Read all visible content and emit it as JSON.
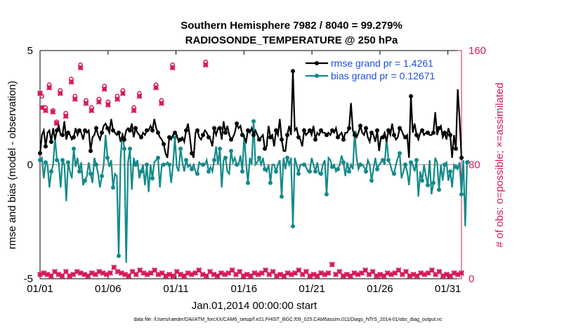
{
  "chart_data": {
    "type": "line",
    "title": "Southern Hemisphere 7982 / 8040 = 99.279%",
    "subtitle": "RADIOSONDE_TEMPERATURE @ 250 hPa",
    "xlabel": "Jan.01,2014 00:00:00 start",
    "ylabel_left": "rmse and bias (model - observation)",
    "ylabel_right": "# of obs: o=possible; ×=assimilated",
    "x_ticks": [
      "01/01",
      "01/06",
      "01/11",
      "01/16",
      "01/21",
      "01/26",
      "01/31"
    ],
    "y_left_ticks": [
      "5",
      "0",
      "-5"
    ],
    "y_right_ticks": [
      "160",
      "80",
      "0"
    ],
    "ylim_left": [
      -5,
      5
    ],
    "ylim_right": [
      0,
      160
    ],
    "legend": [
      "rmse grand pr = 1.4261",
      "bias grand pr = 0.12671"
    ],
    "footnote": "data file: /Users/raeder/DAI/ATM_forcXX/CAM6_setup/f.e21.FHIST_BGC.f09_025.CAM6assim.011/Diags_NTrS_2014-01/obs_diag_output.nc",
    "colors": {
      "rmse": "#000000",
      "bias": "#138a8a",
      "obs": "#d6195a",
      "zero": "#c8a0a0"
    },
    "rmse": [
      0.5,
      1.3,
      1.5,
      0.8,
      1.4,
      1.5,
      1.0,
      1.6,
      1.1,
      1.5,
      1.7,
      1.3,
      1.3,
      1.9,
      1.1,
      1.4,
      1.3,
      1.1,
      1.2,
      1.6,
      1.3,
      1.5,
      1.4,
      1.1,
      1.5,
      1.4,
      1.5,
      0.6,
      1.2,
      1.3,
      1.6,
      1.3,
      1.1,
      1.4,
      1.7,
      1.8,
      1.6,
      1.4,
      2.0,
      1.5,
      1.4,
      1.3,
      1.4,
      1.0,
      1.3,
      1.1,
      1.5,
      1.6,
      1.5,
      1.8,
      1.2,
      1.6,
      1.4,
      1.3,
      1.2,
      1.4,
      1.3,
      1.5,
      1.5,
      1.7,
      1.5,
      2.0,
      1.6,
      1.4,
      1.2,
      1.1,
      0.9,
      0.5,
      0.3,
      1.2,
      1.1,
      1.3,
      1.4,
      1.3,
      1.0,
      1.1,
      1.2,
      1.0,
      1.5,
      1.8,
      1.2,
      0.5,
      0.3,
      1.4,
      1.5,
      1.2,
      1.1,
      1.3,
      1.5,
      1.4,
      1.2,
      1.1,
      0.8,
      1.6,
      1.3,
      1.6,
      1.6,
      1.1,
      1.9,
      1.4,
      1.7,
      1.3,
      1.1,
      1.2,
      1.4,
      1.8,
      1.6,
      1.7,
      1.3,
      1.2,
      1.0,
      1.5,
      1.4,
      1.6,
      1.3,
      1.5,
      1.3,
      1.1,
      1.2,
      1.3,
      0.7,
      0.8,
      1.7,
      1.2,
      1.3,
      0.8,
      1.5,
      1.3,
      2.0,
      1.1,
      0.6,
      0.6,
      1.3,
      1.7,
      1.3,
      4.1,
      1.5,
      1.6,
      1.2,
      1.1,
      0.8,
      1.5,
      1.3,
      1.4,
      1.5,
      1.3,
      1.7,
      1.1,
      1.4,
      1.3,
      1.5,
      1.4,
      1.4,
      1.3,
      1.4,
      1.3,
      1.5,
      1.4,
      1.6,
      1.2,
      1.3,
      1.4,
      1.1,
      1.4,
      1.4,
      1.6,
      2.7,
      1.5,
      1.3,
      1.2,
      1.4,
      1.7,
      1.4,
      1.3,
      1.6,
      1.2,
      1.0,
      1.4,
      1.3,
      1.0,
      1.5,
      0.6,
      1.2,
      1.2,
      1.4,
      1.0,
      1.5,
      1.3,
      1.8,
      1.3,
      1.1,
      1.2,
      1.6,
      1.5,
      1.3,
      1.2,
      1.3,
      0.3,
      3.0,
      1.4,
      1.8,
      1.3,
      1.1,
      1.4,
      1.5,
      1.3,
      1.4,
      1.4,
      1.3,
      1.3,
      1.4,
      2.3,
      1.3,
      1.6,
      1.7,
      1.2,
      1.4,
      1.1,
      1.6,
      1.3,
      0.3,
      1.3,
      0.7,
      3.3,
      2.0,
      0.3
    ],
    "bias": [
      0.2,
      0.3,
      -0.6,
      0.1,
      0.0,
      -1.0,
      -0.3,
      0.0,
      1.2,
      0.2,
      0.1,
      -1.0,
      0.2,
      0.0,
      -1.6,
      0.1,
      -0.3,
      -0.6,
      0.7,
      -0.1,
      0.3,
      -0.3,
      0.1,
      -0.9,
      -0.7,
      -0.5,
      0.1,
      -0.4,
      -0.8,
      0.3,
      0.0,
      -0.4,
      -1.0,
      -0.5,
      0.0,
      1.3,
      0.3,
      -0.1,
      0.2,
      -1.0,
      -0.4,
      -0.5,
      -4.0,
      0.3,
      1.4,
      0.7,
      -4.3,
      0.1,
      0.7,
      -1.1,
      0.3,
      0.0,
      0.2,
      -0.6,
      -0.3,
      0.0,
      -0.9,
      0.0,
      -1.2,
      0.0,
      -0.6,
      0.1,
      0.2,
      0.3,
      -1.0,
      0.0,
      0.0,
      0.0,
      0.1,
      0.0,
      -0.8,
      0.0,
      1.2,
      -0.1,
      -0.3,
      0.7,
      0.1,
      -0.3,
      0.2,
      -0.1,
      0.0,
      -0.2,
      0.0,
      -0.3,
      -0.4,
      0.1,
      0.0,
      0.0,
      0.0,
      0.2,
      -0.3,
      -0.1,
      -0.3,
      0.2,
      0.8,
      0.0,
      0.7,
      -1.0,
      0.2,
      0.3,
      -0.3,
      -0.4,
      0.6,
      0.1,
      0.3,
      0.0,
      0.0,
      0.4,
      -0.3,
      1.3,
      0.1,
      -0.8,
      0.3,
      0.0,
      1.9,
      0.0,
      0.1,
      0.3,
      0.0,
      0.3,
      -0.2,
      -0.3,
      0.0,
      -0.8,
      0.0,
      0.0,
      -0.3,
      0.0,
      0.2,
      -1.4,
      0.3,
      -0.2,
      0.3,
      0.0,
      0.3,
      -2.7,
      0.3,
      0.0,
      -0.4,
      0.0,
      0.0,
      0.0,
      -0.1,
      -0.3,
      -0.3,
      0.3,
      0.0,
      -0.3,
      0.1,
      -0.4,
      -0.4,
      0.0,
      0.2,
      -1.3,
      0.3,
      0.2,
      -0.1,
      0.0,
      -0.3,
      -0.2,
      0.0,
      0.4,
      0.1,
      -0.5,
      0.1,
      -0.3,
      0.0,
      -0.2,
      1.4,
      0.3,
      -0.2,
      0.0,
      0.0,
      -0.1,
      -0.3,
      0.2,
      0.0,
      -0.7,
      -0.2,
      0.3,
      -0.2,
      0.0,
      0.1,
      0.2,
      0.0,
      1.2,
      0.2,
      0.0,
      -0.3,
      -0.4,
      0.0,
      0.3,
      0.5,
      -0.6,
      -0.3,
      0.0,
      -0.3,
      -0.9,
      0.1,
      0.0,
      -0.3,
      0.2,
      -1.4,
      -0.3,
      -0.7,
      0.0,
      -0.5,
      -0.9,
      0.2,
      -1.3,
      -0.8,
      0.3,
      0.1,
      -1.1,
      0.0,
      -0.7,
      0.0,
      0.1,
      -0.7,
      -0.3,
      -1.0,
      0.0,
      -0.1,
      -0.2,
      0.1,
      -1.3,
      0.2,
      -2.7,
      0.1,
      0.2
    ],
    "obs_possible_upper": [
      130,
      128,
      0,
      120,
      0,
      136,
      0,
      118,
      0,
      110,
      0,
      132,
      0,
      0,
      116,
      0,
      0,
      140,
      0,
      128,
      0,
      0,
      150,
      0,
      0,
      125,
      0,
      0,
      120,
      0,
      0,
      0,
      126,
      0,
      0,
      135,
      0,
      124,
      0,
      0,
      0,
      0,
      128,
      0,
      0,
      132,
      0,
      0,
      0,
      0,
      0,
      120,
      0,
      0,
      130,
      0,
      0,
      0,
      0,
      0,
      0,
      0,
      0,
      136,
      0,
      0,
      125,
      0,
      0,
      0,
      0,
      0,
      150,
      0,
      0,
      0,
      0,
      0,
      0,
      0,
      0,
      0,
      0,
      0,
      0,
      0,
      0,
      0,
      0,
      0,
      152,
      0,
      0,
      0,
      0,
      0,
      0,
      0,
      0,
      0,
      0,
      0,
      0,
      0,
      0,
      0,
      0,
      0,
      0,
      0,
      0,
      0,
      0,
      0,
      0,
      0,
      0,
      0,
      0,
      0,
      0,
      0,
      0,
      0,
      0,
      0,
      0,
      0,
      0,
      0,
      0,
      0,
      0,
      0,
      0,
      0,
      0,
      0,
      0,
      0,
      0,
      0,
      0,
      0,
      0,
      0,
      0,
      0,
      0,
      0,
      0,
      0,
      0,
      0,
      0,
      0,
      0,
      0,
      0,
      0,
      0,
      0,
      0,
      0,
      0,
      0,
      0,
      0,
      0,
      0,
      0,
      0,
      0,
      0,
      0,
      0,
      0,
      0,
      0,
      0,
      0,
      0,
      0,
      0,
      0,
      0,
      0,
      0,
      0,
      0,
      0,
      0,
      0,
      0,
      0,
      0,
      0,
      0,
      0,
      0,
      0,
      0,
      0,
      0,
      0,
      0,
      0,
      0,
      0,
      0,
      0,
      0,
      0,
      0,
      0,
      0,
      0,
      0,
      0,
      0,
      0,
      0,
      0,
      0,
      0,
      0,
      0,
      0,
      0,
      0
    ],
    "obs_assimilated_upper": [
      130,
      120,
      0,
      118,
      0,
      134,
      0,
      117,
      0,
      109,
      0,
      130,
      0,
      0,
      114,
      0,
      0,
      138,
      0,
      126,
      0,
      0,
      148,
      0,
      0,
      123,
      0,
      0,
      118,
      0,
      0,
      0,
      124,
      0,
      0,
      133,
      0,
      122,
      0,
      0,
      0,
      0,
      126,
      0,
      0,
      130,
      0,
      0,
      0,
      0,
      0,
      118,
      0,
      0,
      128,
      0,
      0,
      0,
      0,
      0,
      0,
      0,
      0,
      134,
      0,
      0,
      123,
      0,
      0,
      0,
      0,
      0,
      148,
      0,
      0,
      0,
      0,
      0,
      0,
      0,
      0,
      0,
      0,
      0,
      0,
      0,
      0,
      0,
      0,
      0,
      150,
      0,
      0,
      0,
      0,
      0,
      0,
      0,
      0,
      0,
      0,
      0,
      0,
      0,
      0,
      0,
      0,
      0,
      0,
      0,
      0,
      0,
      0,
      0,
      0,
      0,
      0,
      0,
      0,
      0,
      0,
      0,
      0,
      0,
      0,
      0,
      0,
      0,
      0,
      0,
      0,
      0,
      0,
      0,
      0,
      0,
      0,
      0,
      0,
      0,
      0,
      0,
      0,
      0,
      0,
      0,
      0,
      0,
      0,
      0,
      0,
      0,
      0,
      0,
      0,
      0,
      0,
      0,
      0,
      0,
      0,
      0,
      0,
      0,
      0,
      0,
      0,
      0,
      0,
      0,
      0,
      0,
      0,
      0,
      0,
      0,
      0,
      0,
      0,
      0,
      0,
      0,
      0,
      0,
      0,
      0,
      0,
      0,
      0,
      0,
      0,
      0,
      0,
      0,
      0,
      0,
      0,
      0,
      0,
      0,
      0,
      0,
      0,
      0,
      0,
      0,
      0,
      0,
      0,
      0,
      0,
      0,
      0,
      0,
      0,
      0,
      0,
      0,
      0,
      0,
      0,
      0,
      0,
      0,
      0,
      0,
      0,
      0,
      0,
      0,
      0
    ],
    "obs_possible_lower": [
      3,
      2,
      4,
      2,
      3,
      6,
      2,
      3,
      5,
      2,
      3,
      4,
      2,
      3,
      5,
      3,
      2,
      4,
      3,
      2,
      5,
      3,
      4,
      2,
      3,
      6,
      2,
      3,
      4,
      2,
      3,
      4,
      5,
      3,
      4,
      2,
      3,
      6,
      4,
      3,
      8,
      2,
      5,
      3,
      4,
      6,
      3,
      4,
      2,
      3,
      5,
      4,
      3,
      2,
      6,
      3,
      4,
      2,
      3,
      5,
      4,
      3,
      6,
      2,
      3,
      5,
      4,
      3,
      2,
      6,
      3,
      4,
      2,
      3,
      5,
      4,
      3,
      6,
      2,
      3,
      4,
      2,
      3,
      5,
      4,
      3,
      6,
      2,
      3,
      4,
      2,
      3,
      5,
      4,
      3,
      6,
      2,
      3,
      4,
      5,
      3,
      2,
      4,
      3,
      6,
      2,
      3,
      4,
      5,
      3,
      2,
      4,
      3,
      6,
      2,
      3,
      4,
      5,
      3,
      2,
      4,
      3,
      6,
      2,
      3,
      4,
      5,
      3,
      2,
      4,
      3,
      6,
      2,
      3,
      4,
      5,
      3,
      2,
      4,
      3,
      6,
      2,
      3,
      4,
      5,
      3,
      2,
      4,
      3,
      6,
      2,
      3,
      4,
      5,
      3,
      2,
      4,
      3,
      10,
      2,
      3,
      4,
      5,
      3,
      2,
      4,
      3,
      6,
      2,
      3,
      4,
      5,
      3,
      2,
      4,
      3,
      6,
      2,
      3,
      4,
      5,
      3,
      2,
      4,
      3,
      6,
      2,
      3,
      4,
      5,
      3,
      2,
      4,
      3,
      6,
      2,
      3,
      4,
      5,
      3,
      2,
      4,
      3,
      6,
      2,
      3,
      4,
      5,
      3,
      2,
      4,
      3,
      6,
      2,
      3,
      4,
      5,
      3,
      2,
      4,
      3,
      6,
      2,
      3,
      4,
      5,
      3,
      2,
      4
    ],
    "x_start_day": 1,
    "x_end_day": 32
  }
}
